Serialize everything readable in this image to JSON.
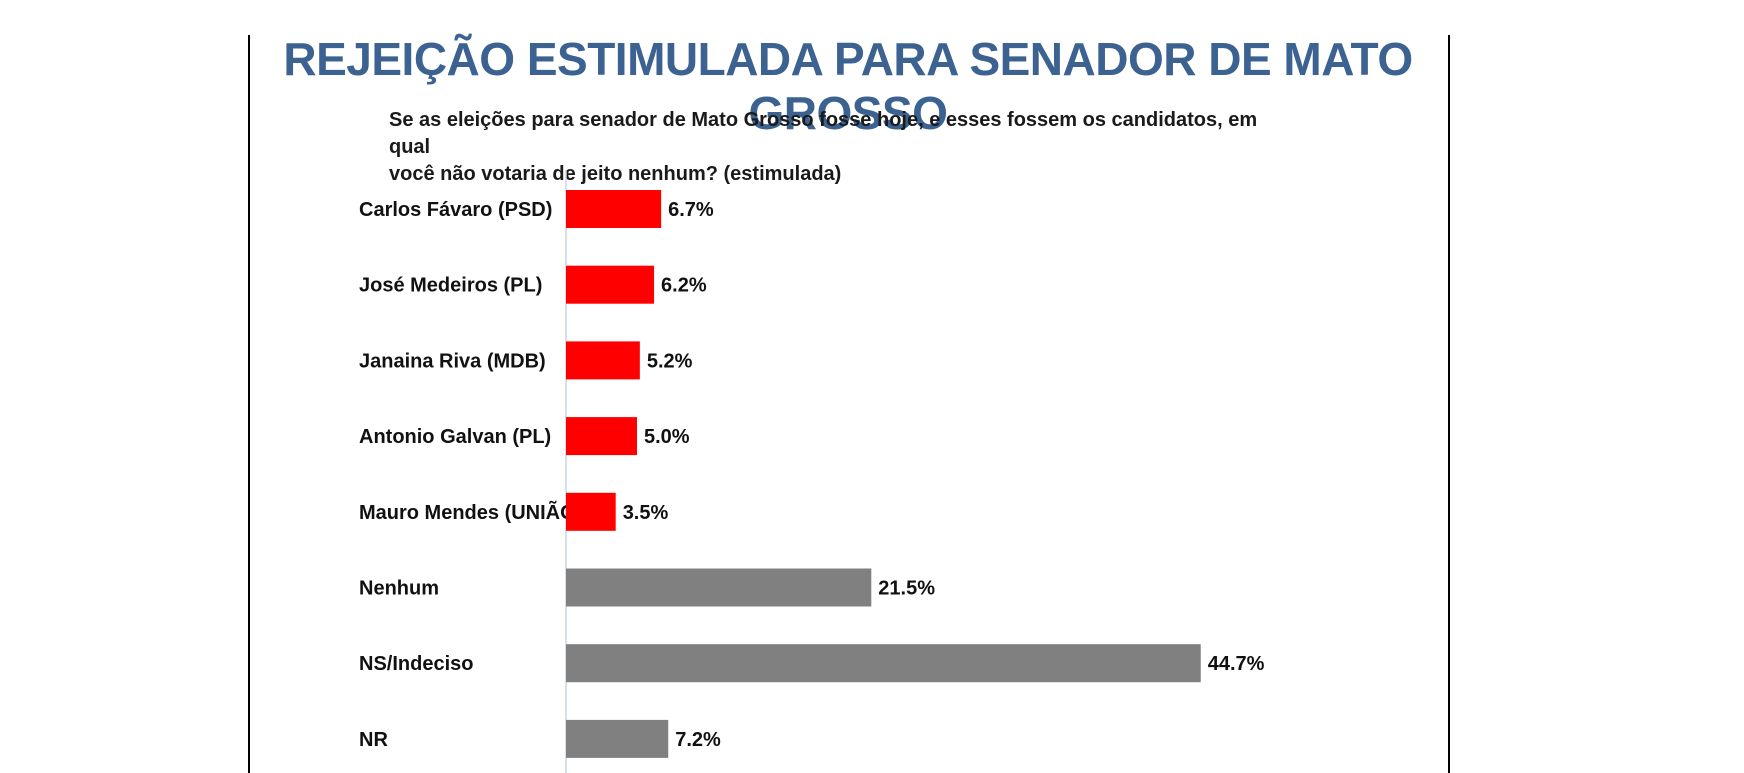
{
  "colors": {
    "title": "#3c6292",
    "candidate_bar": "#ff0000",
    "other_bar": "#808080",
    "axis": "#c9d6e3"
  },
  "chart_data": {
    "type": "bar",
    "orientation": "horizontal",
    "title": "REJEIÇÃO ESTIMULADA PARA SENADOR DE MATO GROSSO",
    "subtitle_lines": [
      "Se as eleições para senador de Mato Grosso fosse hoje, e esses fossem os candidatos, em qual",
      "você não votaria de jeito nenhum? (estimulada)"
    ],
    "categories": [
      "Carlos Fávaro (PSD)",
      "José Medeiros (PL)",
      "Janaina Riva (MDB)",
      "Antonio Galvan (PL)",
      "Mauro Mendes (UNIÃO)",
      "Nenhum",
      "NS/Indeciso",
      "NR"
    ],
    "values": [
      6.7,
      6.2,
      5.2,
      5.0,
      3.5,
      21.5,
      44.7,
      7.2
    ],
    "labels": [
      "6.7%",
      "6.2%",
      "5.2%",
      "5.0%",
      "3.5%",
      "21.5%",
      "44.7%",
      "7.2%"
    ],
    "groups": [
      "candidate",
      "candidate",
      "candidate",
      "candidate",
      "candidate",
      "other",
      "other",
      "other"
    ],
    "unit": "%",
    "xlim": [
      0,
      50
    ],
    "xlabel": "",
    "ylabel": "",
    "grid": false,
    "legend": "none"
  }
}
